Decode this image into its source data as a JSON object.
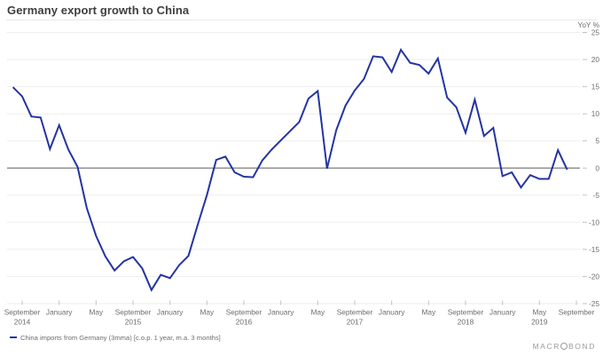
{
  "header": {
    "title": "Germany export growth to China"
  },
  "axis": {
    "unit_label": "YoY %"
  },
  "legend": {
    "label": "China imports from Germany (3mma) [c.o.p. 1 year, m.a. 3 months]"
  },
  "branding": {
    "name": "MACROBOND",
    "text_before_o": "MACR",
    "text_after_o": "BOND"
  },
  "colors": {
    "line": "#2433a3",
    "grid": "#ededed",
    "zero_line": "#8a8a8a",
    "tick": "#c2c2c2",
    "axis_text": "#6d6d6d",
    "title_text": "#3e3e40"
  },
  "chart_data": {
    "type": "line",
    "title": "Germany export growth to China",
    "ylabel": "YoY %",
    "xlabel": "",
    "ylim": [
      -25,
      25
    ],
    "yticks": [
      25,
      20,
      15,
      10,
      5,
      0,
      -5,
      -10,
      -15,
      -20,
      -25
    ],
    "grid": true,
    "legend_position": "bottom-left",
    "xticks": [
      {
        "label": "September",
        "year": "2014"
      },
      {
        "label": "January",
        "year": ""
      },
      {
        "label": "May",
        "year": ""
      },
      {
        "label": "September",
        "year": "2015"
      },
      {
        "label": "January",
        "year": ""
      },
      {
        "label": "May",
        "year": ""
      },
      {
        "label": "September",
        "year": "2016"
      },
      {
        "label": "January",
        "year": ""
      },
      {
        "label": "May",
        "year": ""
      },
      {
        "label": "September",
        "year": "2017"
      },
      {
        "label": "January",
        "year": ""
      },
      {
        "label": "May",
        "year": ""
      },
      {
        "label": "September",
        "year": "2018"
      },
      {
        "label": "January",
        "year": ""
      },
      {
        "label": "May",
        "year": "2019"
      },
      {
        "label": "September",
        "year": ""
      }
    ],
    "series": [
      {
        "name": "China imports from Germany (3mma) [c.o.p. 1 year, m.a. 3 months]",
        "x": [
          "2014-08",
          "2014-09",
          "2014-10",
          "2014-11",
          "2014-12",
          "2015-01",
          "2015-02",
          "2015-03",
          "2015-04",
          "2015-05",
          "2015-06",
          "2015-07",
          "2015-08",
          "2015-09",
          "2015-10",
          "2015-11",
          "2015-12",
          "2016-01",
          "2016-02",
          "2016-03",
          "2016-04",
          "2016-05",
          "2016-06",
          "2016-07",
          "2016-08",
          "2016-09",
          "2016-10",
          "2016-11",
          "2016-12",
          "2017-01",
          "2017-02",
          "2017-03",
          "2017-04",
          "2017-05",
          "2017-06",
          "2017-07",
          "2017-08",
          "2017-09",
          "2017-10",
          "2017-11",
          "2017-12",
          "2018-01",
          "2018-02",
          "2018-03",
          "2018-04",
          "2018-05",
          "2018-06",
          "2018-07",
          "2018-08",
          "2018-09",
          "2018-10",
          "2018-11",
          "2018-12",
          "2019-01",
          "2019-02",
          "2019-03",
          "2019-04",
          "2019-05",
          "2019-06",
          "2019-07",
          "2019-08"
        ],
        "values": [
          14.9,
          13.2,
          9.5,
          9.3,
          3.5,
          7.9,
          3.4,
          0.2,
          -7.4,
          -12.5,
          -16.3,
          -18.9,
          -17.2,
          -16.4,
          -18.5,
          -22.5,
          -19.7,
          -20.3,
          -17.9,
          -16.2,
          -10.5,
          -5.0,
          1.5,
          2.1,
          -0.8,
          -1.6,
          -1.7,
          1.4,
          3.4,
          5.1,
          6.8,
          8.5,
          12.8,
          14.2,
          -0.1,
          7.0,
          11.5,
          14.3,
          16.4,
          20.6,
          20.4,
          17.7,
          21.8,
          19.4,
          19.0,
          17.4,
          20.2,
          13.0,
          11.2,
          6.5,
          12.6,
          5.9,
          7.4,
          -1.5,
          -0.8,
          -3.6,
          -1.3,
          -2.0,
          -2.0,
          3.3,
          -0.3
        ]
      }
    ]
  }
}
